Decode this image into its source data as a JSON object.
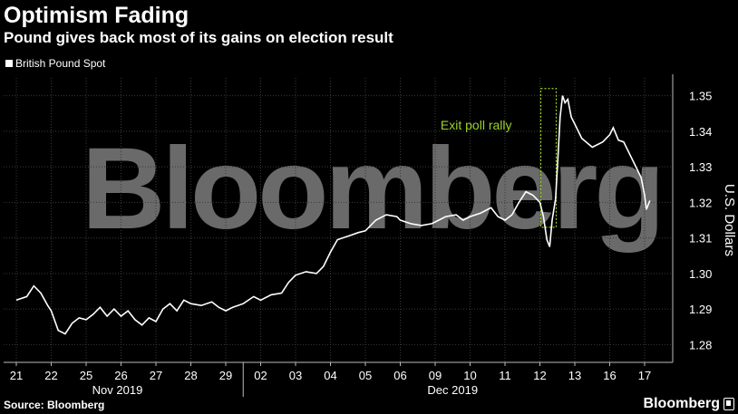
{
  "header": {
    "title": "Optimism Fading",
    "subtitle": "Pound gives back most of its gains on election result"
  },
  "footer": {
    "source": "Source: Bloomberg",
    "brand": "Bloomberg"
  },
  "watermark": "Bloomberg",
  "colors": {
    "background": "#000000",
    "line": "#ffffff",
    "annotation": "#9bd327",
    "watermark": "#6a6a6a"
  },
  "chart_data": {
    "type": "line",
    "title": "Optimism Fading",
    "subtitle": "Pound gives back most of its gains on election result",
    "ylabel": "U.S. Dollars",
    "y_axis_side": "right",
    "ylim": [
      1.275,
      1.355
    ],
    "yticks": [
      "1.35",
      "1.34",
      "1.33",
      "1.32",
      "1.31",
      "1.30",
      "1.29",
      "1.28"
    ],
    "yticks_values": [
      1.35,
      1.34,
      1.33,
      1.32,
      1.31,
      1.3,
      1.29,
      1.28
    ],
    "categories": [
      "21",
      "22",
      "25",
      "26",
      "27",
      "28",
      "29",
      "02",
      "03",
      "04",
      "05",
      "06",
      "09",
      "10",
      "11",
      "12",
      "13",
      "16",
      "17"
    ],
    "month_labels": [
      "Nov 2019",
      "Dec 2019"
    ],
    "grid": true,
    "legend_placement": "top-left",
    "legend": [
      "British Pound Spot"
    ],
    "annotations": [
      {
        "text": "Exit poll rally",
        "x_category": "12",
        "y_range": [
          1.313,
          1.352
        ]
      }
    ],
    "series": [
      {
        "name": "British Pound Spot",
        "values": [
          [
            0.0,
            1.2925
          ],
          [
            0.3,
            1.2935
          ],
          [
            0.5,
            1.2965
          ],
          [
            0.7,
            1.2945
          ],
          [
            0.9,
            1.291
          ],
          [
            1.0,
            1.2895
          ],
          [
            1.2,
            1.284
          ],
          [
            1.4,
            1.283
          ],
          [
            1.6,
            1.286
          ],
          [
            1.8,
            1.2875
          ],
          [
            2.0,
            1.287
          ],
          [
            2.2,
            1.2885
          ],
          [
            2.4,
            1.2905
          ],
          [
            2.6,
            1.288
          ],
          [
            2.8,
            1.29
          ],
          [
            3.0,
            1.288
          ],
          [
            3.2,
            1.2895
          ],
          [
            3.4,
            1.287
          ],
          [
            3.6,
            1.2855
          ],
          [
            3.8,
            1.2875
          ],
          [
            4.0,
            1.2865
          ],
          [
            4.2,
            1.29
          ],
          [
            4.4,
            1.2915
          ],
          [
            4.6,
            1.2895
          ],
          [
            4.8,
            1.2925
          ],
          [
            5.0,
            1.2915
          ],
          [
            5.3,
            1.291
          ],
          [
            5.6,
            1.292
          ],
          [
            5.8,
            1.2905
          ],
          [
            6.0,
            1.2895
          ],
          [
            6.2,
            1.2905
          ],
          [
            6.5,
            1.2915
          ],
          [
            6.8,
            1.2935
          ],
          [
            7.0,
            1.2925
          ],
          [
            7.3,
            1.294
          ],
          [
            7.6,
            1.2945
          ],
          [
            7.8,
            1.2975
          ],
          [
            8.0,
            1.2995
          ],
          [
            8.3,
            1.3005
          ],
          [
            8.6,
            1.3
          ],
          [
            8.8,
            1.302
          ],
          [
            9.0,
            1.306
          ],
          [
            9.2,
            1.3095
          ],
          [
            9.5,
            1.3105
          ],
          [
            9.8,
            1.3115
          ],
          [
            10.0,
            1.312
          ],
          [
            10.3,
            1.315
          ],
          [
            10.6,
            1.3165
          ],
          [
            10.9,
            1.316
          ],
          [
            11.0,
            1.315
          ],
          [
            11.3,
            1.314
          ],
          [
            11.6,
            1.3135
          ],
          [
            11.9,
            1.314
          ],
          [
            12.0,
            1.3145
          ],
          [
            12.3,
            1.316
          ],
          [
            12.6,
            1.3165
          ],
          [
            12.8,
            1.315
          ],
          [
            13.0,
            1.316
          ],
          [
            13.3,
            1.317
          ],
          [
            13.6,
            1.3185
          ],
          [
            13.8,
            1.316
          ],
          [
            14.0,
            1.315
          ],
          [
            14.2,
            1.3165
          ],
          [
            14.4,
            1.32
          ],
          [
            14.6,
            1.323
          ],
          [
            14.8,
            1.322
          ],
          [
            15.0,
            1.32
          ],
          [
            15.1,
            1.316
          ],
          [
            15.2,
            1.3095
          ],
          [
            15.28,
            1.3075
          ],
          [
            15.35,
            1.315
          ],
          [
            15.45,
            1.321
          ],
          [
            15.52,
            1.333
          ],
          [
            15.58,
            1.344
          ],
          [
            15.65,
            1.35
          ],
          [
            15.72,
            1.348
          ],
          [
            15.8,
            1.349
          ],
          [
            15.9,
            1.344
          ],
          [
            16.0,
            1.342
          ],
          [
            16.2,
            1.338
          ],
          [
            16.5,
            1.3355
          ],
          [
            16.8,
            1.337
          ],
          [
            17.0,
            1.339
          ],
          [
            17.1,
            1.341
          ],
          [
            17.25,
            1.3375
          ],
          [
            17.4,
            1.337
          ],
          [
            17.6,
            1.333
          ],
          [
            17.8,
            1.329
          ],
          [
            17.9,
            1.327
          ],
          [
            18.0,
            1.322
          ],
          [
            18.05,
            1.318
          ],
          [
            18.15,
            1.3205
          ]
        ]
      }
    ]
  }
}
